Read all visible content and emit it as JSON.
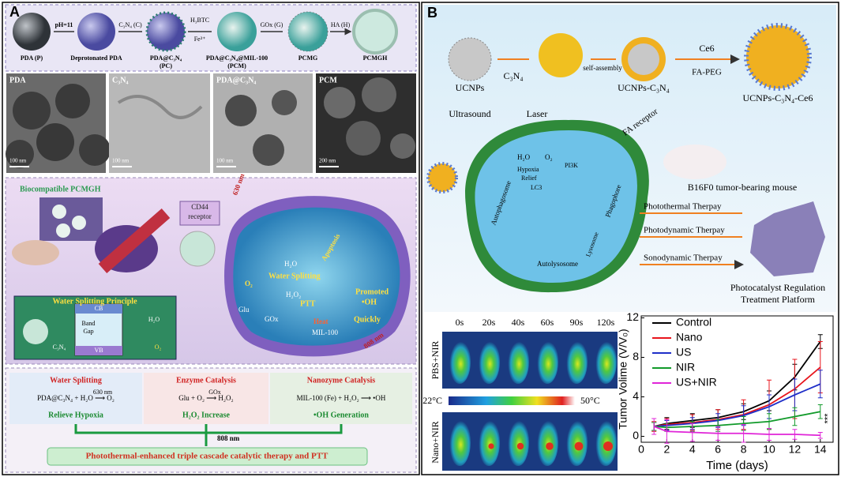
{
  "panel_a": {
    "letter": "A",
    "products": [
      "PDA (P)",
      "Deprotonated PDA",
      "PDA@C₃N₄",
      "(PC)",
      "PDA@C₃N₄@MIL-100",
      "(PCM)",
      "PCMG",
      "PCMGH"
    ],
    "reagents": [
      "pH=11",
      "C₃N₄ (C)",
      "H₃BTC",
      "Fe³⁺",
      "GOx (G)",
      "HA (H)"
    ],
    "tem_labels": [
      "PDA",
      "C₃N₄",
      "PDA@C₃N₄",
      "PCM"
    ],
    "scale_bars": [
      "100 nm",
      "100 nm",
      "100 nm",
      "200 nm"
    ],
    "mechanism": [
      "Biocompatible PCMGH",
      "CD44",
      "receptor",
      "630 nm",
      "H₂O",
      "Water Splitting",
      "PTT",
      "Promoted",
      "•OH",
      "Apoptosis",
      "GOx",
      "Glu",
      "H₂O₂",
      "Heat",
      "MIL-100",
      "Quickly",
      "808 nm",
      "O₂"
    ],
    "principle": [
      "Water Splitting Principle",
      "CB",
      "VB",
      "Band",
      "Gap",
      "C₃N₄",
      "H₂O",
      "O₂"
    ],
    "summary": {
      "boxes": [
        {
          "title": "Water Splitting",
          "equation": "PDA@C₃N₄ + H₂O ⟶ O₂",
          "condition": "630 nm",
          "result": "Relieve Hypoxia"
        },
        {
          "title": "Enzyme Catalysis",
          "equation": "Glu + O₂ ⟶ H₂O₂",
          "condition": "GOx",
          "result": "H₂O₂ Increase"
        },
        {
          "title": "Nanozyme Catalysis",
          "equation": "MIL-100 (Fe) + H₂O₂ ⟶ •OH",
          "condition": "",
          "result": "•OH Generation"
        }
      ],
      "trigger": "808 nm",
      "conclusion": "Photothermal-enhanced triple cascade catalytic therapy and PTT"
    }
  },
  "panel_b": {
    "letter": "B",
    "synthesis": [
      "UCNPs",
      "C₃N₄",
      "self-assembly",
      "UCNPs-C₃N₄",
      "Ce6",
      "FA-PEG",
      "UCNPs-C₃N₄-Ce6"
    ],
    "cell": [
      "Ultrasound",
      "Laser",
      "FA receptor",
      "H₂O",
      "O₂",
      "Hypoxia",
      "Relief",
      "PI3K",
      "LC3",
      "Autophagosome",
      "Phagophore",
      "Lysosome",
      "Autolysosome"
    ],
    "mouse_label": "B16F0 tumor-bearing mouse",
    "therapies": [
      "Photothermal Therpay",
      "Photodynamic Therpay",
      "Sonodynamic Therpay"
    ],
    "platform": [
      "Photocatalyst Regulation",
      "Treatment Platform"
    ],
    "thermal": {
      "times": [
        "0s",
        "20s",
        "40s",
        "60s",
        "90s",
        "120s"
      ],
      "groups": [
        "PBS+NIR",
        "Nano+NIR"
      ],
      "scale": [
        "22°C",
        "50°C"
      ]
    }
  },
  "chart_data": {
    "type": "line",
    "xlabel": "Time (days)",
    "ylabel": "Tumor Volime (V/V₀)",
    "x": [
      1,
      2,
      4,
      6,
      8,
      10,
      12,
      14
    ],
    "series": [
      {
        "name": "Control",
        "color": "#000000",
        "values": [
          1,
          1.3,
          1.6,
          1.9,
          2.5,
          3.6,
          6.0,
          9.6
        ],
        "errors": [
          0.4,
          0.6,
          0.7,
          0.8,
          0.8,
          1.0,
          1.3,
          0.7
        ]
      },
      {
        "name": "Nano",
        "color": "#e8141c",
        "values": [
          1,
          1.2,
          1.4,
          1.7,
          2.2,
          3.2,
          4.8,
          7.0
        ],
        "errors": [
          0.5,
          0.6,
          0.8,
          1.0,
          1.5,
          2.5,
          3.0,
          2.6
        ]
      },
      {
        "name": "US",
        "color": "#1f2fc8",
        "values": [
          1,
          1.1,
          1.3,
          1.6,
          2.1,
          3.0,
          4.2,
          5.3
        ],
        "errors": [
          0.4,
          0.5,
          0.6,
          0.7,
          1.0,
          1.2,
          1.6,
          1.4
        ]
      },
      {
        "name": "NIR",
        "color": "#119a2a",
        "values": [
          1,
          0.9,
          1.0,
          1.1,
          1.3,
          1.5,
          2.0,
          2.5
        ],
        "errors": [
          0.4,
          0.4,
          0.5,
          0.6,
          0.7,
          0.8,
          0.9,
          0.7
        ]
      },
      {
        "name": "US+NIR",
        "color": "#e025d8",
        "values": [
          1,
          0.5,
          0.4,
          0.3,
          0.3,
          0.2,
          0.2,
          0.1
        ],
        "errors": [
          0.8,
          1.2,
          0.9,
          0.7,
          0.9,
          0.6,
          0.5,
          0.3
        ]
      }
    ],
    "xlim": [
      0,
      15
    ],
    "xticks": [
      0,
      2,
      4,
      6,
      8,
      10,
      12,
      14
    ],
    "ylim": [
      -0.6,
      12.2
    ],
    "yticks": [
      0,
      4,
      8,
      12
    ],
    "legend": "upper left",
    "annotation": "***"
  }
}
